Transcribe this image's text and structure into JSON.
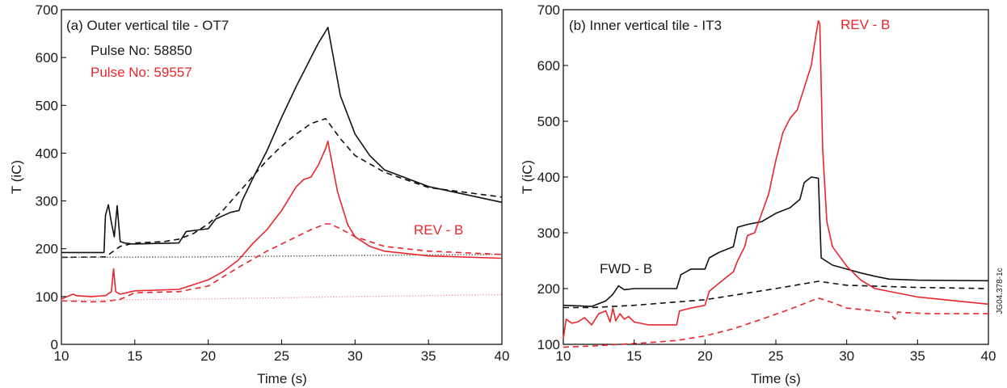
{
  "figure_id": "JG04.378-1c",
  "chart_data": [
    {
      "type": "line",
      "title": "(a) Outer vertical tile - OT7",
      "xlabel": "Time (s)",
      "ylabel": "T (iC)",
      "xlim": [
        10,
        40
      ],
      "ylim": [
        0,
        700
      ],
      "xticks": [
        10,
        15,
        20,
        25,
        30,
        35,
        40
      ],
      "yticks": [
        0,
        100,
        200,
        300,
        400,
        500,
        600,
        700
      ],
      "grid": false,
      "annotations": [
        {
          "text": "Pulse No: 58850",
          "color": "#1a1a1a"
        },
        {
          "text": "Pulse No: 59557",
          "color": "#e8262c"
        },
        {
          "text": "REV - B",
          "color": "#e8262c"
        }
      ],
      "series": [
        {
          "color": "#111111",
          "style": "solid",
          "x": [
            10,
            12.9,
            13.0,
            13.2,
            13.4,
            13.6,
            13.8,
            14,
            14.3,
            14.8,
            15,
            18,
            18.5,
            20,
            20.5,
            21.5,
            22.1,
            22.3,
            23,
            24,
            25,
            26,
            26.5,
            27,
            27.5,
            28,
            28.15,
            29,
            30,
            31,
            32,
            35,
            40
          ],
          "y": [
            192,
            192,
            270,
            292,
            255,
            225,
            290,
            215,
            212,
            210,
            210,
            212,
            236,
            242,
            262,
            276,
            280,
            300,
            345,
            405,
            475,
            540,
            570,
            600,
            630,
            655,
            663,
            520,
            440,
            395,
            365,
            330,
            297
          ]
        },
        {
          "color": "#111111",
          "style": "dashed",
          "x": [
            10,
            13,
            14,
            15,
            17,
            18,
            19,
            20,
            21,
            22,
            23,
            24,
            25,
            26,
            27,
            28,
            29,
            30,
            32,
            35,
            40
          ],
          "y": [
            182,
            183,
            205,
            212,
            215,
            220,
            232,
            252,
            280,
            315,
            350,
            385,
            415,
            440,
            462,
            472,
            430,
            395,
            360,
            328,
            308
          ]
        },
        {
          "color": "#555555",
          "style": "dotted",
          "x": [
            10,
            20,
            30,
            40
          ],
          "y": [
            182,
            183,
            186,
            188
          ]
        },
        {
          "color": "#e8262c",
          "style": "solid",
          "x": [
            10,
            10.8,
            11,
            12,
            13,
            13.4,
            13.55,
            13.7,
            14,
            15,
            18,
            20,
            21,
            22,
            22.3,
            23,
            24,
            25,
            26,
            26.5,
            27,
            27.5,
            28,
            28.15,
            28.8,
            29.5,
            30,
            31,
            32,
            35,
            40
          ],
          "y": [
            95,
            105,
            102,
            100,
            102,
            110,
            158,
            110,
            105,
            112,
            115,
            135,
            152,
            175,
            185,
            210,
            240,
            280,
            330,
            345,
            350,
            375,
            410,
            425,
            320,
            250,
            225,
            205,
            195,
            185,
            180
          ]
        },
        {
          "color": "#e8262c",
          "style": "dashed",
          "x": [
            10,
            12,
            13,
            14,
            15,
            18,
            20,
            22,
            24,
            26,
            27,
            28,
            28.3,
            29,
            30,
            32,
            35,
            40
          ],
          "y": [
            91,
            89,
            90,
            94,
            108,
            110,
            122,
            160,
            195,
            225,
            240,
            252,
            252,
            242,
            225,
            205,
            195,
            188
          ]
        },
        {
          "color": "#f2a0a4",
          "style": "dotted",
          "x": [
            10,
            20,
            30,
            40
          ],
          "y": [
            92,
            95,
            100,
            104
          ]
        }
      ]
    },
    {
      "type": "line",
      "title": "(b) Inner vertical tile - IT3",
      "xlabel": "Time (s)",
      "ylabel": "T (iC)",
      "xlim": [
        10,
        40
      ],
      "ylim": [
        100,
        700
      ],
      "xticks": [
        10,
        15,
        20,
        25,
        30,
        35,
        40
      ],
      "yticks": [
        100,
        200,
        300,
        400,
        500,
        600,
        700
      ],
      "grid": false,
      "annotations": [
        {
          "text": "REV - B",
          "color": "#e8262c"
        },
        {
          "text": "FWD - B",
          "color": "#1a1a1a"
        }
      ],
      "series": [
        {
          "color": "#111111",
          "style": "solid",
          "x": [
            10,
            12,
            13,
            13.5,
            13.9,
            14.3,
            15,
            16,
            18,
            18.3,
            19,
            20,
            20.3,
            21,
            22,
            22.3,
            23,
            24,
            25,
            26,
            26.7,
            27,
            27.5,
            28,
            28.2,
            29,
            30,
            31,
            32,
            33,
            35,
            40
          ],
          "y": [
            170,
            168,
            178,
            190,
            205,
            198,
            200,
            200,
            200,
            225,
            235,
            235,
            255,
            265,
            275,
            310,
            315,
            320,
            335,
            345,
            360,
            390,
            400,
            398,
            255,
            242,
            235,
            228,
            222,
            217,
            215,
            214
          ]
        },
        {
          "color": "#111111",
          "style": "dashed",
          "x": [
            10,
            12,
            15,
            20,
            25,
            28,
            30,
            35,
            40
          ],
          "y": [
            166,
            166,
            170,
            180,
            200,
            213,
            206,
            202,
            200
          ]
        },
        {
          "color": "#e8262c",
          "style": "solid",
          "x": [
            10,
            10.2,
            10.6,
            11,
            11.5,
            12,
            12.5,
            13,
            13.3,
            13.5,
            13.7,
            14,
            14.3,
            14.6,
            15,
            16,
            17,
            18,
            18.2,
            19,
            20,
            20.3,
            21,
            22,
            22.3,
            22.8,
            23,
            23.5,
            24,
            24.5,
            25,
            25.5,
            26,
            26.5,
            27,
            27.5,
            27.8,
            28,
            28.1,
            28.3,
            28.6,
            29,
            30,
            31,
            32,
            35,
            40
          ],
          "y": [
            110,
            145,
            138,
            140,
            148,
            135,
            155,
            160,
            140,
            165,
            142,
            155,
            145,
            150,
            140,
            135,
            135,
            135,
            160,
            165,
            170,
            195,
            210,
            230,
            250,
            275,
            295,
            300,
            335,
            370,
            430,
            480,
            505,
            520,
            560,
            600,
            650,
            680,
            675,
            450,
            320,
            275,
            240,
            215,
            200,
            185,
            172
          ]
        },
        {
          "color": "#e8262c",
          "style": "dashed",
          "x": [
            10,
            12,
            14,
            16,
            18,
            20,
            22,
            24,
            26,
            27,
            28,
            29,
            30,
            32,
            33,
            33.4,
            33.6,
            34,
            36,
            40
          ],
          "y": [
            95,
            97,
            100,
            103,
            107,
            115,
            128,
            145,
            163,
            173,
            183,
            175,
            165,
            160,
            157,
            145,
            158,
            157,
            155,
            155
          ]
        }
      ]
    }
  ]
}
